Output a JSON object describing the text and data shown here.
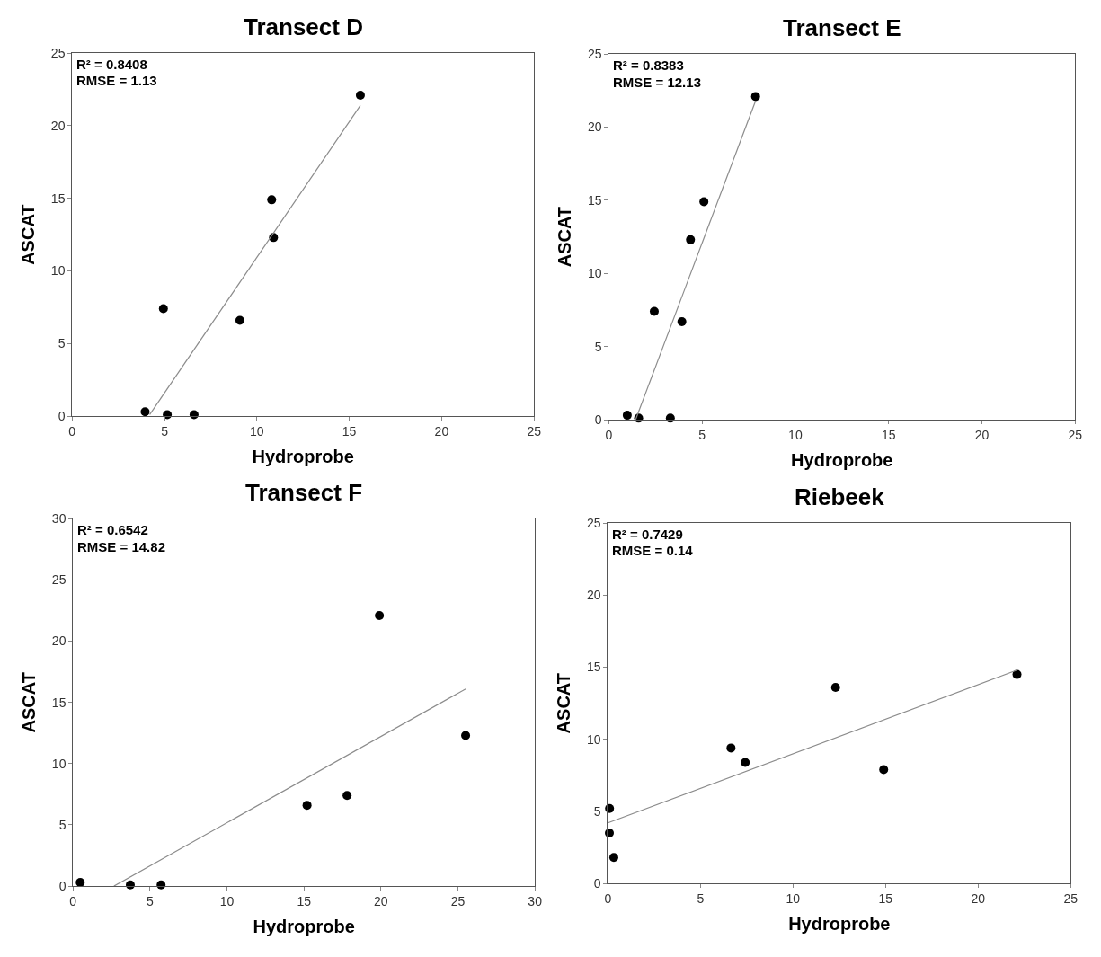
{
  "chart_data": [
    {
      "type": "scatter",
      "title": "Transect D",
      "xlabel": "Hydroprobe",
      "ylabel": "ASCAT",
      "xlim": [
        0,
        25
      ],
      "xticks": [
        0,
        5,
        10,
        15,
        20,
        25
      ],
      "ylim": [
        0,
        25
      ],
      "yticks": [
        0,
        5,
        10,
        15,
        20,
        25
      ],
      "annotations": [
        "R² = 0.8408",
        "RMSE = 1.13"
      ],
      "series": [
        {
          "marker": "circle",
          "color": "#000000",
          "x": [
            3.95,
            4.94,
            5.15,
            6.6,
            9.08,
            10.8,
            10.9,
            15.6
          ],
          "values": [
            0.3,
            7.4,
            0.1,
            0.1,
            6.6,
            14.9,
            12.3,
            22.1
          ]
        },
        {
          "type": "line",
          "marker": "none",
          "color": "#8c8c8c",
          "x": [
            4.2,
            15.6
          ],
          "values": [
            0.1,
            21.4
          ]
        }
      ]
    },
    {
      "type": "scatter",
      "title": "Transect E",
      "xlabel": "Hydroprobe",
      "ylabel": "ASCAT",
      "xlim": [
        0,
        25
      ],
      "xticks": [
        0,
        5,
        10,
        15,
        20,
        25
      ],
      "ylim": [
        0,
        25
      ],
      "yticks": [
        0,
        5,
        10,
        15,
        20,
        25
      ],
      "annotations": [
        "R² = 0.8383",
        "RMSE = 12.13"
      ],
      "series": [
        {
          "marker": "circle",
          "color": "#000000",
          "x": [
            0.99,
            1.6,
            2.44,
            3.3,
            3.92,
            4.38,
            5.1,
            7.87
          ],
          "values": [
            0.3,
            0.1,
            7.4,
            0.1,
            6.7,
            12.3,
            14.9,
            22.1
          ]
        },
        {
          "type": "line",
          "marker": "none",
          "color": "#8c8c8c",
          "x": [
            1.44,
            7.87
          ],
          "values": [
            0,
            21.8
          ]
        }
      ]
    },
    {
      "type": "scatter",
      "title": "Transect F",
      "xlabel": "Hydroprobe",
      "ylabel": "ASCAT",
      "xlim": [
        0,
        30
      ],
      "xticks": [
        0,
        5,
        10,
        15,
        20,
        25,
        30
      ],
      "ylim": [
        0,
        30
      ],
      "yticks": [
        0,
        5,
        10,
        15,
        20,
        25,
        30
      ],
      "annotations": [
        "R² = 0.6542",
        "RMSE = 14.82"
      ],
      "series": [
        {
          "marker": "circle",
          "color": "#000000",
          "x": [
            0.47,
            3.72,
            5.72,
            15.2,
            17.8,
            19.9,
            25.5
          ],
          "values": [
            0.3,
            0.1,
            0.1,
            6.6,
            7.4,
            22.1,
            12.3
          ]
        },
        {
          "type": "line",
          "marker": "none",
          "color": "#8c8c8c",
          "x": [
            2.66,
            25.5
          ],
          "values": [
            0,
            16.1
          ]
        }
      ]
    },
    {
      "type": "scatter",
      "title": "Riebeek",
      "xlabel": "Hydroprobe",
      "ylabel": "ASCAT",
      "xlim": [
        0,
        25
      ],
      "xticks": [
        0,
        5,
        10,
        15,
        20,
        25
      ],
      "ylim": [
        0,
        25
      ],
      "yticks": [
        0,
        5,
        10,
        15,
        20,
        25
      ],
      "annotations": [
        "R² = 0.7429",
        "RMSE = 0.14"
      ],
      "series": [
        {
          "marker": "circle",
          "color": "#000000",
          "x": [
            0.09,
            0.08,
            0.32,
            6.65,
            7.42,
            12.3,
            14.9,
            22.1
          ],
          "values": [
            5.2,
            3.5,
            1.8,
            9.4,
            8.4,
            13.6,
            7.9,
            14.5
          ]
        },
        {
          "type": "line",
          "marker": "none",
          "color": "#8c8c8c",
          "x": [
            0,
            22.1
          ],
          "values": [
            4.2,
            14.8
          ]
        }
      ]
    }
  ]
}
